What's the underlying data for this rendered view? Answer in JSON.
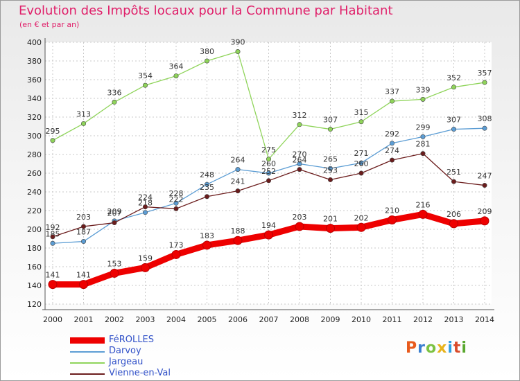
{
  "title": "Evolution des Impôts locaux pour la Commune par Habitant",
  "subtitle": "(en € et par an)",
  "logo": {
    "text": "Proxiti",
    "colors": [
      "#e85a1c",
      "#3b7fd0",
      "#7cc242",
      "#e8b31c",
      "#2f9ee0",
      "#d94b2a",
      "#5aa830"
    ]
  },
  "chart_data": {
    "type": "line",
    "title": "Evolution des Impôts locaux pour la Commune par Habitant",
    "ylabel": "(en € et par an)",
    "categories": [
      "2000",
      "2001",
      "2002",
      "2003",
      "2004",
      "2005",
      "2006",
      "2007",
      "2008",
      "2009",
      "2010",
      "2011",
      "2012",
      "2013",
      "2014"
    ],
    "ylim": [
      120,
      400
    ],
    "yticks": [
      120,
      140,
      160,
      180,
      200,
      220,
      240,
      260,
      280,
      300,
      320,
      340,
      360,
      380,
      400
    ],
    "grid": true,
    "legend_position": "bottom-left",
    "series": [
      {
        "name": "FéROLLES",
        "color": "#ee0000",
        "thick": true,
        "values": [
          141,
          141,
          153,
          159,
          173,
          183,
          188,
          194,
          203,
          201,
          202,
          210,
          216,
          206,
          209
        ]
      },
      {
        "name": "Darvoy",
        "color": "#5c9dd4",
        "thick": false,
        "values": [
          185,
          187,
          209,
          218,
          228,
          248,
          264,
          260,
          270,
          265,
          271,
          292,
          299,
          307,
          308
        ]
      },
      {
        "name": "Jargeau",
        "color": "#8fd45a",
        "thick": false,
        "values": [
          295,
          313,
          336,
          354,
          364,
          380,
          390,
          275,
          312,
          307,
          315,
          337,
          339,
          352,
          357
        ]
      },
      {
        "name": "Vienne-en-Val",
        "color": "#6b1c1c",
        "thick": false,
        "values": [
          192,
          203,
          207,
          224,
          222,
          235,
          241,
          252,
          264,
          253,
          260,
          274,
          281,
          251,
          247
        ]
      }
    ]
  }
}
